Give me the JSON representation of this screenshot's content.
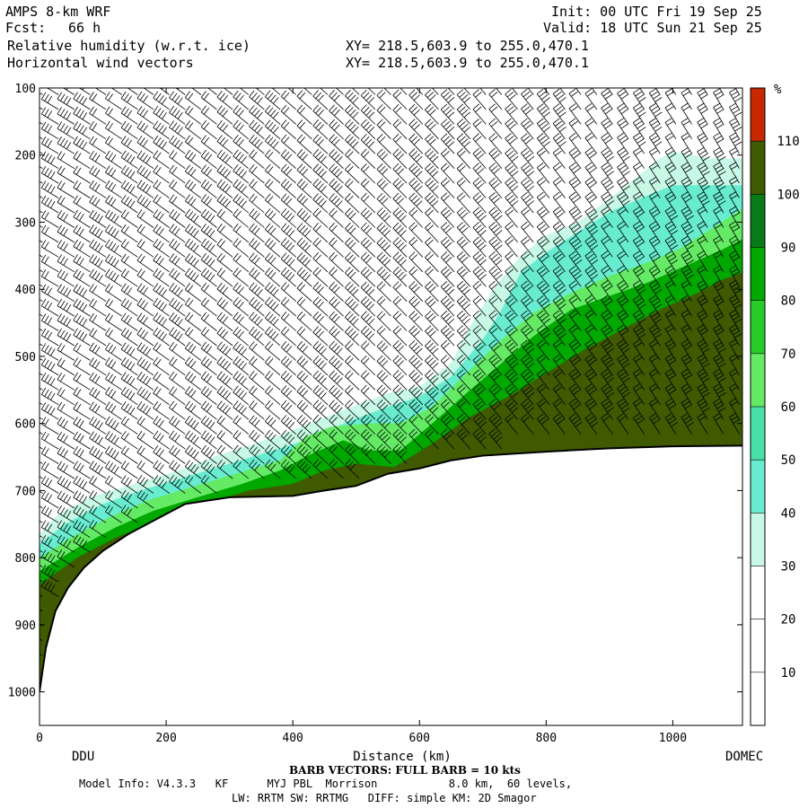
{
  "header": {
    "model": "AMPS 8-km WRF",
    "forecast_label": "Fcst:",
    "forecast_hours": "66 h",
    "init": "Init: 00 UTC Fri 19 Sep 25",
    "valid": "Valid: 18 UTC Sun 21 Sep 25",
    "field1": "Relative humidity (w.r.t. ice)",
    "field2": "Horizontal wind vectors",
    "xy1": "XY= 218.5,603.9 to 255.0,470.1",
    "xy2": "XY= 218.5,603.9 to 255.0,470.1"
  },
  "footer": {
    "barb_note": "BARB VECTORS: FULL BARB = 10 kts",
    "model_info": "Model Info: V4.3.3   KF      MYJ PBL  Morrison           8.0 km,  60 levels,",
    "physics": "LW: RRTM SW: RRTMG   DIFF: simple KM: 2D Smagor"
  },
  "chart_data": {
    "type": "heatmap",
    "xlabel": "Distance (km)",
    "ylabel": "",
    "xlim": [
      0,
      1110
    ],
    "ylim": [
      1050,
      100
    ],
    "x_ticks": [
      0,
      200,
      400,
      600,
      800,
      1000
    ],
    "y_ticks": [
      100,
      200,
      300,
      400,
      500,
      600,
      700,
      800,
      900,
      1000
    ],
    "endpoints": {
      "left": "DDU",
      "right": "DOMEC"
    },
    "colorbar": {
      "unit": "%",
      "levels": [
        10,
        20,
        30,
        40,
        50,
        60,
        70,
        80,
        90,
        100,
        110
      ],
      "colors": [
        "#ffffff",
        "#ffffff",
        "#ffffff",
        "#c8f8e6",
        "#68ecd0",
        "#48e0a8",
        "#64ea64",
        "#28cc28",
        "#00a800",
        "#087a18",
        "#3f5a00",
        "#c82800"
      ]
    },
    "terrain_pressure": [
      [
        0,
        1000
      ],
      [
        10,
        935
      ],
      [
        25,
        880
      ],
      [
        45,
        845
      ],
      [
        70,
        815
      ],
      [
        100,
        790
      ],
      [
        140,
        765
      ],
      [
        180,
        745
      ],
      [
        230,
        720
      ],
      [
        300,
        710
      ],
      [
        400,
        708
      ],
      [
        450,
        700
      ],
      [
        500,
        693
      ],
      [
        550,
        675
      ],
      [
        600,
        667
      ],
      [
        650,
        655
      ],
      [
        700,
        648
      ],
      [
        800,
        642
      ],
      [
        900,
        637
      ],
      [
        1000,
        634
      ],
      [
        1110,
        633
      ]
    ],
    "humidity_bands": [
      {
        "level": 30,
        "top": [
          [
            0,
            765
          ],
          [
            30,
            735
          ],
          [
            80,
            710
          ],
          [
            150,
            690
          ],
          [
            220,
            670
          ],
          [
            280,
            648
          ],
          [
            340,
            630
          ],
          [
            400,
            610
          ],
          [
            480,
            580
          ],
          [
            550,
            555
          ],
          [
            600,
            545
          ],
          [
            650,
            510
          ],
          [
            680,
            455
          ],
          [
            720,
            395
          ],
          [
            760,
            350
          ],
          [
            800,
            320
          ],
          [
            850,
            300
          ],
          [
            900,
            265
          ],
          [
            940,
            235
          ],
          [
            980,
            205
          ],
          [
            1000,
            195
          ],
          [
            1060,
            205
          ],
          [
            1110,
            205
          ]
        ]
      },
      {
        "level": 40,
        "top": [
          [
            0,
            780
          ],
          [
            40,
            750
          ],
          [
            100,
            720
          ],
          [
            160,
            700
          ],
          [
            230,
            680
          ],
          [
            300,
            660
          ],
          [
            370,
            640
          ],
          [
            420,
            625
          ],
          [
            480,
            600
          ],
          [
            550,
            575
          ],
          [
            600,
            560
          ],
          [
            650,
            530
          ],
          [
            700,
            475
          ],
          [
            730,
            430
          ],
          [
            760,
            375
          ],
          [
            800,
            345
          ],
          [
            850,
            315
          ],
          [
            900,
            285
          ],
          [
            960,
            260
          ],
          [
            1000,
            245
          ],
          [
            1110,
            245
          ]
        ]
      },
      {
        "level": 60,
        "top": [
          [
            0,
            800
          ],
          [
            50,
            770
          ],
          [
            110,
            740
          ],
          [
            170,
            715
          ],
          [
            240,
            695
          ],
          [
            310,
            675
          ],
          [
            380,
            655
          ],
          [
            420,
            620
          ],
          [
            460,
            605
          ],
          [
            520,
            600
          ],
          [
            570,
            600
          ],
          [
            620,
            575
          ],
          [
            680,
            520
          ],
          [
            730,
            475
          ],
          [
            780,
            435
          ],
          [
            840,
            405
          ],
          [
            900,
            380
          ],
          [
            960,
            360
          ],
          [
            1010,
            340
          ],
          [
            1060,
            310
          ],
          [
            1110,
            280
          ]
        ]
      },
      {
        "level": 80,
        "top": [
          [
            0,
            820
          ],
          [
            60,
            785
          ],
          [
            120,
            755
          ],
          [
            180,
            730
          ],
          [
            250,
            710
          ],
          [
            320,
            690
          ],
          [
            380,
            670
          ],
          [
            430,
            645
          ],
          [
            480,
            625
          ],
          [
            520,
            640
          ],
          [
            570,
            640
          ],
          [
            620,
            600
          ],
          [
            680,
            550
          ],
          [
            730,
            510
          ],
          [
            780,
            470
          ],
          [
            840,
            430
          ],
          [
            900,
            410
          ],
          [
            960,
            390
          ],
          [
            1020,
            365
          ],
          [
            1080,
            340
          ],
          [
            1110,
            325
          ]
        ]
      },
      {
        "level": 100,
        "top": [
          [
            0,
            840
          ],
          [
            60,
            800
          ],
          [
            120,
            770
          ],
          [
            190,
            745
          ],
          [
            260,
            720
          ],
          [
            330,
            700
          ],
          [
            400,
            690
          ],
          [
            450,
            670
          ],
          [
            500,
            660
          ],
          [
            560,
            665
          ],
          [
            620,
            630
          ],
          [
            680,
            590
          ],
          [
            740,
            560
          ],
          [
            800,
            525
          ],
          [
            860,
            490
          ],
          [
            920,
            460
          ],
          [
            980,
            430
          ],
          [
            1040,
            405
          ],
          [
            1080,
            385
          ],
          [
            1110,
            375
          ]
        ]
      }
    ],
    "wind_grid": {
      "x_start": 5,
      "x_step": 25,
      "p_start": 110,
      "p_step": 22
    }
  }
}
